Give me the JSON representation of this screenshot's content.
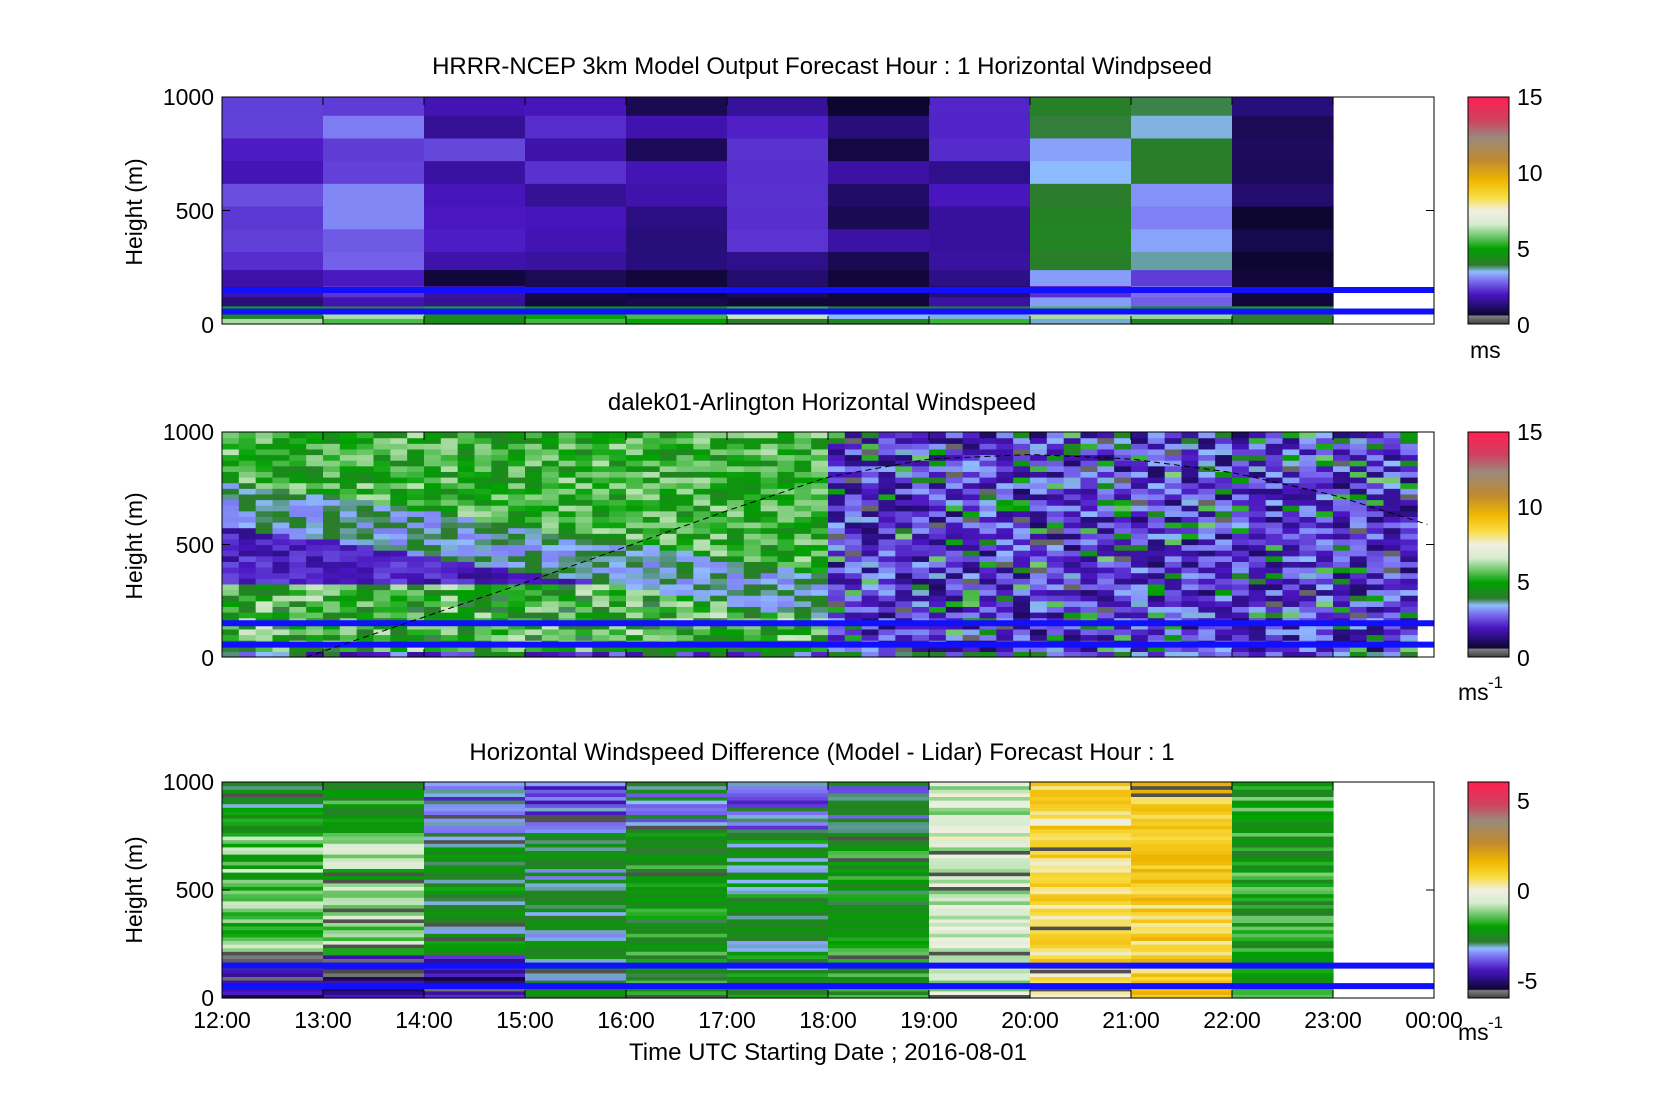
{
  "chart_data": [
    {
      "type": "heatmap",
      "title": "HRRR-NCEP 3km Model Output   Forecast Hour : 1 Horizontal Windpseed",
      "ylabel": "Height (m)",
      "ylim": [
        0,
        1000
      ],
      "yticks": [
        "0",
        "500",
        "1000"
      ],
      "x_range": [
        "12:00",
        "00:00"
      ],
      "time_columns": [
        "12:00",
        "13:00",
        "14:00",
        "15:00",
        "16:00",
        "17:00",
        "18:00",
        "19:00",
        "20:00",
        "21:00",
        "22:00"
      ],
      "data_ends": "23:00",
      "colorbar": {
        "min": 0,
        "max": 15,
        "ticks": [
          "0",
          "5",
          "10",
          "15"
        ],
        "unit": "ms"
      },
      "reference_heights_m": [
        150,
        55
      ],
      "approx_mean_windspeed_by_column": [
        2.2,
        2.6,
        2.0,
        1.8,
        1.4,
        1.8,
        1.2,
        1.9,
        3.6,
        3.4,
        0.9
      ]
    },
    {
      "type": "heatmap",
      "title": "dalek01-Arlington  Horizontal Windspeed",
      "ylabel": "Height (m)",
      "ylim": [
        0,
        1000
      ],
      "yticks": [
        "0",
        "500",
        "1000"
      ],
      "x_range": [
        "12:00",
        "00:00"
      ],
      "data_ends": "23:50",
      "colorbar": {
        "min": 0,
        "max": 15,
        "ticks": [
          "0",
          "5",
          "10",
          "15"
        ],
        "unit": "ms",
        "unit_exponent": "-1"
      },
      "reference_heights_m": [
        150,
        55
      ],
      "boundary_layer_curve": {
        "style": "dashed",
        "x": [
          "12:50",
          "15:00",
          "17:00",
          "18:00",
          "19:00",
          "20:00",
          "21:00",
          "22:00",
          "23:00",
          "00:00"
        ],
        "height_m": [
          0,
          330,
          650,
          800,
          880,
          900,
          880,
          820,
          720,
          580
        ]
      }
    },
    {
      "type": "heatmap",
      "title": "Horizontal Windspeed Difference (Model - Lidar) Forecast Hour : 1",
      "ylabel": "Height (m)",
      "xlabel": "Time UTC  Starting Date ; 2016-08-01",
      "ylim": [
        0,
        1000
      ],
      "yticks": [
        "0",
        "500",
        "1000"
      ],
      "xticks": [
        "12:00",
        "13:00",
        "14:00",
        "15:00",
        "16:00",
        "17:00",
        "18:00",
        "19:00",
        "20:00",
        "21:00",
        "22:00",
        "23:00",
        "00:00"
      ],
      "data_ends": "23:00",
      "colorbar": {
        "min": -6,
        "max": 6,
        "ticks": [
          "-5",
          "0",
          "5"
        ],
        "unit": "ms",
        "unit_exponent": "-1"
      },
      "reference_heights_m": [
        150,
        55
      ],
      "approx_mean_difference_by_column": [
        -1.5,
        -1.2,
        -2.6,
        -2.8,
        -2.2,
        -2.6,
        -2.2,
        -0.6,
        0.8,
        1.0,
        -2.0
      ]
    }
  ]
}
